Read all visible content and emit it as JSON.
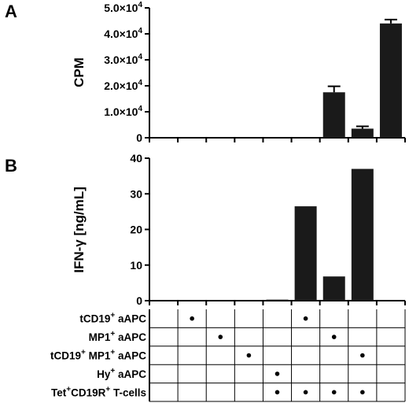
{
  "chart_data": [
    {
      "panel": "A",
      "type": "bar",
      "ylabel": "CPM",
      "ylim": [
        0,
        50000
      ],
      "yticks": [
        {
          "value": 0,
          "mant": "0",
          "exp": ""
        },
        {
          "value": 10000,
          "mant": "1.0×10",
          "exp": "4"
        },
        {
          "value": 20000,
          "mant": "2.0×10",
          "exp": "4"
        },
        {
          "value": 30000,
          "mant": "3.0×10",
          "exp": "4"
        },
        {
          "value": 40000,
          "mant": "4.0×10",
          "exp": "4"
        },
        {
          "value": 50000,
          "mant": "5.0×10",
          "exp": "4"
        }
      ],
      "values": [
        80,
        60,
        60,
        70,
        60,
        60,
        17500,
        3500,
        44000
      ],
      "errors": [
        0,
        0,
        0,
        0,
        0,
        0,
        2300,
        900,
        1500
      ]
    },
    {
      "panel": "B",
      "type": "bar",
      "ylabel": "IFN-γ [ng/mL]",
      "ylim": [
        0,
        40
      ],
      "yticks": [
        {
          "value": 0,
          "mant": "0",
          "exp": ""
        },
        {
          "value": 10,
          "mant": "10",
          "exp": ""
        },
        {
          "value": 20,
          "mant": "20",
          "exp": ""
        },
        {
          "value": 30,
          "mant": "30",
          "exp": ""
        },
        {
          "value": 40,
          "mant": "40",
          "exp": ""
        }
      ],
      "values": [
        0,
        0,
        0,
        0,
        0.3,
        26.5,
        6.8,
        37,
        0
      ],
      "errors": [
        0,
        0,
        0,
        0,
        0,
        0,
        0,
        0,
        0
      ]
    }
  ],
  "conditions": {
    "columns": 9,
    "rows": [
      {
        "parts": [
          {
            "t": "tCD19"
          },
          {
            "t": "+",
            "sup": true
          },
          {
            "t": " aAPC"
          }
        ],
        "dots": [
          1,
          5
        ]
      },
      {
        "parts": [
          {
            "t": "MP1"
          },
          {
            "t": "+",
            "sup": true
          },
          {
            "t": " aAPC"
          }
        ],
        "dots": [
          2,
          6
        ]
      },
      {
        "parts": [
          {
            "t": "tCD19"
          },
          {
            "t": "+",
            "sup": true
          },
          {
            "t": " MP1"
          },
          {
            "t": "+",
            "sup": true
          },
          {
            "t": " aAPC"
          }
        ],
        "dots": [
          3,
          7
        ]
      },
      {
        "parts": [
          {
            "t": "Hy"
          },
          {
            "t": "+",
            "sup": true
          },
          {
            "t": " aAPC"
          }
        ],
        "dots": [
          4
        ]
      },
      {
        "parts": [
          {
            "t": "Tet"
          },
          {
            "t": "+",
            "sup": true
          },
          {
            "t": "CD19R"
          },
          {
            "t": "+",
            "sup": true
          },
          {
            "t": " T-cells"
          }
        ],
        "dots": [
          4,
          5,
          6,
          7
        ]
      }
    ]
  }
}
